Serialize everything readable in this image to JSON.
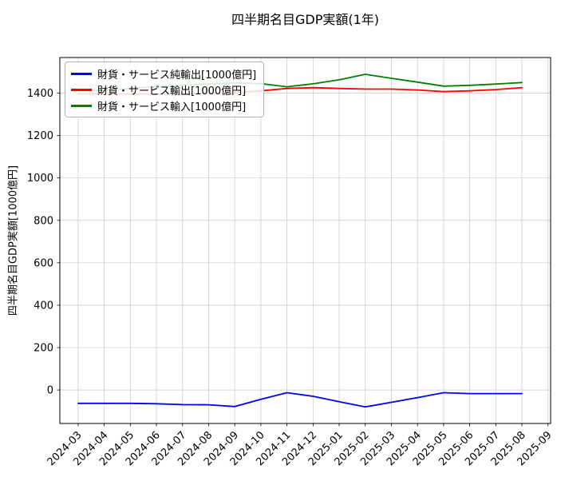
{
  "chart_data": {
    "type": "line",
    "title": "四半期名目GDP実額(1年)",
    "ylabel": "四半期名目GDP実額[1000億円]",
    "xlabel": "",
    "grid": true,
    "legend_position": "upper left",
    "categories": [
      "2024-03",
      "2024-04",
      "2024-05",
      "2024-06",
      "2024-07",
      "2024-08",
      "2024-09",
      "2024-10",
      "2024-11",
      "2024-12",
      "2025-01",
      "2025-02",
      "2025-03",
      "2025-04",
      "2025-05",
      "2025-06",
      "2025-07",
      "2025-08",
      "2025-09"
    ],
    "y_ticks": [
      0,
      200,
      400,
      600,
      800,
      1000,
      1200,
      1400
    ],
    "ylim": [
      -158,
      1568
    ],
    "xlim": [
      -0.7,
      18.1
    ],
    "series": [
      {
        "name": "財貨・サービス純輸出[1000億円]",
        "color": "#0000ff",
        "values": [
          -63,
          -63,
          -63,
          -65,
          -69,
          -70,
          -78,
          -44,
          -13,
          -30,
          -55,
          -80,
          -58,
          -36,
          -13,
          -17,
          -17,
          -17,
          null
        ]
      },
      {
        "name": "財貨・サービス輸出[1000億円]",
        "color": "#ff0000",
        "values": [
          1397,
          1396,
          1396,
          1395,
          1396,
          1398,
          1402,
          1411,
          1422,
          1426,
          1422,
          1419,
          1419,
          1415,
          1407,
          1411,
          1417,
          1426,
          null
        ]
      },
      {
        "name": "財貨・サービス輸入[1000億円]",
        "color": "#008000",
        "values": [
          1408,
          1415,
          1422,
          1430,
          1437,
          1443,
          1448,
          1445,
          1430,
          1444,
          1463,
          1489,
          1470,
          1452,
          1433,
          1437,
          1443,
          1450,
          null
        ]
      }
    ]
  }
}
